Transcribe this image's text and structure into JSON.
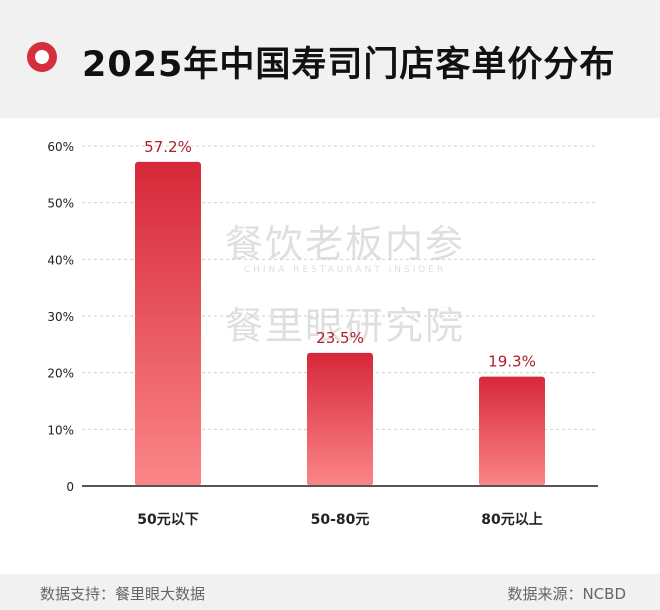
{
  "header": {
    "title": "2025年中国寿司门店客单价分布"
  },
  "watermark": {
    "line1": "餐饮老板内参",
    "line2": "CHINA RESTAURANT INSIDER",
    "line3": "餐里眼研究院"
  },
  "footer": {
    "left": "数据支持：餐里眼大数据",
    "right": "数据来源：NCBD"
  },
  "colors": {
    "accent": "#d62e3c",
    "bar_top": "#d62839",
    "bar_bottom": "#fb8687",
    "value_label": "#b01e2d"
  },
  "chart_data": {
    "type": "bar",
    "title": "2025年中国寿司门店客单价分布",
    "categories": [
      "50元以下",
      "50-80元",
      "80元以上"
    ],
    "values": [
      57.2,
      23.5,
      19.3
    ],
    "value_labels": [
      "57.2%",
      "23.5%",
      "19.3%"
    ],
    "yticks": [
      "0",
      "10%",
      "20%",
      "30%",
      "40%",
      "50%",
      "60%"
    ],
    "ylim": [
      0,
      60
    ],
    "grid": true,
    "legend": "none"
  }
}
